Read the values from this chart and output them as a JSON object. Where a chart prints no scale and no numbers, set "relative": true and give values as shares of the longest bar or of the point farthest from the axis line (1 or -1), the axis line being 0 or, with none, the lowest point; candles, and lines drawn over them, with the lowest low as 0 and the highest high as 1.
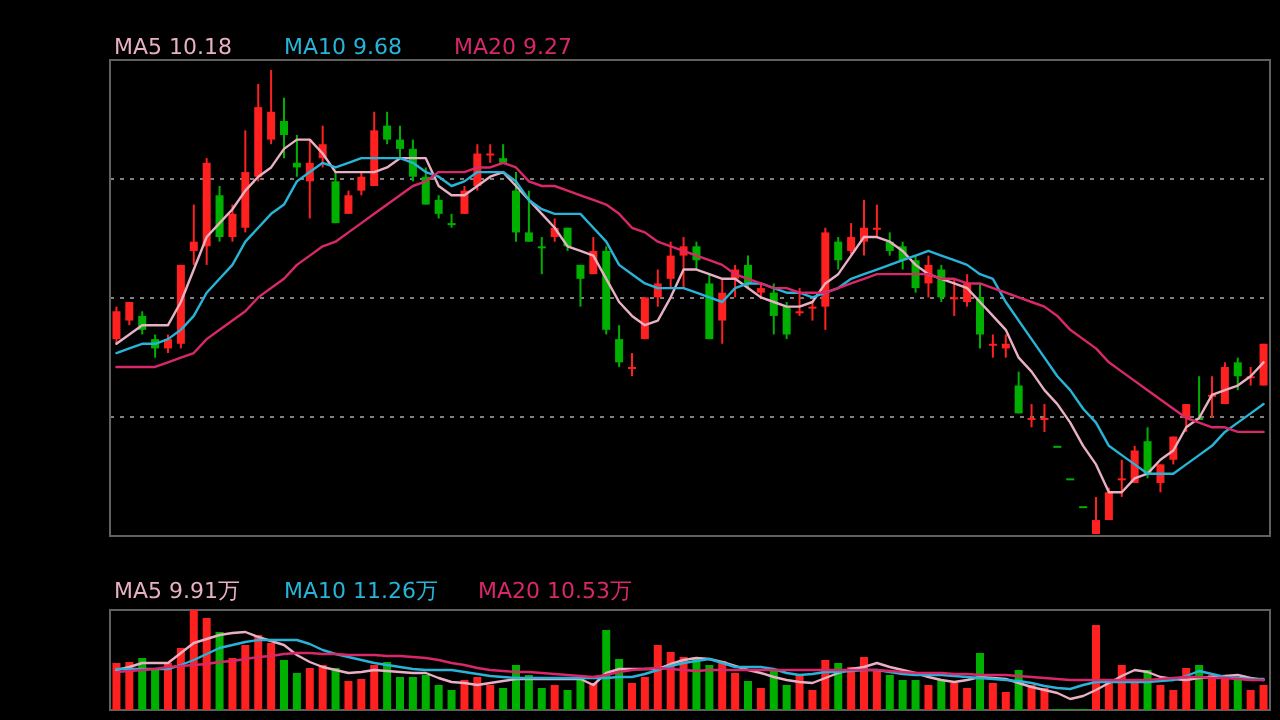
{
  "chart_data": [
    {
      "type": "candlestick",
      "relative": true,
      "grid": "y",
      "legend": "top left",
      "categories": [
        null,
        null,
        null,
        null,
        null,
        null,
        null,
        null,
        null,
        null,
        null,
        null,
        null,
        null,
        null,
        null,
        null,
        null,
        null,
        null,
        null,
        null,
        null,
        null,
        null,
        null,
        null,
        null,
        null,
        null,
        null,
        null,
        null,
        null,
        null,
        null,
        null,
        null,
        null,
        null,
        null,
        null,
        null,
        null,
        null,
        null,
        null,
        null,
        null,
        null,
        null,
        null,
        null,
        null,
        null,
        null,
        null,
        null,
        null,
        null,
        null,
        null,
        null,
        null,
        null,
        null,
        null,
        null,
        null,
        null,
        null,
        null,
        null,
        null,
        null,
        null,
        null,
        null,
        null,
        null,
        null,
        null,
        null,
        null,
        null,
        null,
        null,
        null,
        null,
        null
      ],
      "ohlc": [
        [
          0.42,
          0.49,
          0.41,
          0.48
        ],
        [
          0.46,
          0.5,
          0.45,
          0.5
        ],
        [
          0.47,
          0.48,
          0.43,
          0.44
        ],
        [
          0.42,
          0.43,
          0.38,
          0.4
        ],
        [
          0.4,
          0.43,
          0.39,
          0.42
        ],
        [
          0.41,
          0.58,
          0.4,
          0.58
        ],
        [
          0.61,
          0.71,
          0.58,
          0.63
        ],
        [
          0.62,
          0.81,
          0.58,
          0.8
        ],
        [
          0.73,
          0.75,
          0.63,
          0.64
        ],
        [
          0.64,
          0.71,
          0.63,
          0.69
        ],
        [
          0.66,
          0.87,
          0.65,
          0.78
        ],
        [
          0.77,
          0.97,
          0.76,
          0.92
        ],
        [
          0.85,
          1.0,
          0.84,
          0.91
        ],
        [
          0.89,
          0.94,
          0.81,
          0.86
        ],
        [
          0.8,
          0.86,
          0.77,
          0.79
        ],
        [
          0.76,
          0.85,
          0.68,
          0.8
        ],
        [
          0.81,
          0.88,
          0.79,
          0.84
        ],
        [
          0.76,
          0.78,
          0.67,
          0.67
        ],
        [
          0.69,
          0.74,
          0.69,
          0.73
        ],
        [
          0.74,
          0.78,
          0.73,
          0.77
        ],
        [
          0.75,
          0.91,
          0.75,
          0.87
        ],
        [
          0.88,
          0.91,
          0.84,
          0.85
        ],
        [
          0.85,
          0.88,
          0.81,
          0.83
        ],
        [
          0.83,
          0.85,
          0.76,
          0.77
        ],
        [
          0.77,
          0.79,
          0.71,
          0.71
        ],
        [
          0.72,
          0.73,
          0.68,
          0.69
        ],
        [
          0.67,
          0.69,
          0.66,
          0.67
        ],
        [
          0.69,
          0.75,
          0.69,
          0.74
        ],
        [
          0.75,
          0.84,
          0.74,
          0.82
        ],
        [
          0.82,
          0.84,
          0.8,
          0.82
        ],
        [
          0.81,
          0.84,
          0.8,
          0.8
        ],
        [
          0.74,
          0.78,
          0.63,
          0.65
        ],
        [
          0.65,
          0.74,
          0.63,
          0.63
        ],
        [
          0.62,
          0.64,
          0.56,
          0.62
        ],
        [
          0.64,
          0.68,
          0.63,
          0.66
        ],
        [
          0.66,
          0.66,
          0.61,
          0.62
        ],
        [
          0.58,
          0.58,
          0.49,
          0.55
        ],
        [
          0.56,
          0.64,
          0.56,
          0.61
        ],
        [
          0.61,
          0.62,
          0.43,
          0.44
        ],
        [
          0.42,
          0.45,
          0.36,
          0.37
        ],
        [
          0.36,
          0.39,
          0.34,
          0.36
        ],
        [
          0.42,
          0.51,
          0.42,
          0.51
        ],
        [
          0.51,
          0.57,
          0.49,
          0.54
        ],
        [
          0.55,
          0.63,
          0.53,
          0.6
        ],
        [
          0.6,
          0.64,
          0.53,
          0.62
        ],
        [
          0.62,
          0.63,
          0.57,
          0.59
        ],
        [
          0.54,
          0.56,
          0.42,
          0.42
        ],
        [
          0.46,
          0.55,
          0.41,
          0.52
        ],
        [
          0.55,
          0.58,
          0.51,
          0.57
        ],
        [
          0.58,
          0.6,
          0.53,
          0.54
        ],
        [
          0.52,
          0.54,
          0.51,
          0.53
        ],
        [
          0.52,
          0.54,
          0.43,
          0.47
        ],
        [
          0.49,
          0.5,
          0.42,
          0.43
        ],
        [
          0.48,
          0.53,
          0.47,
          0.48
        ],
        [
          0.49,
          0.5,
          0.46,
          0.49
        ],
        [
          0.49,
          0.66,
          0.44,
          0.65
        ],
        [
          0.63,
          0.64,
          0.57,
          0.59
        ],
        [
          0.61,
          0.67,
          0.6,
          0.64
        ],
        [
          0.63,
          0.72,
          0.6,
          0.66
        ],
        [
          0.66,
          0.71,
          0.64,
          0.66
        ],
        [
          0.63,
          0.65,
          0.6,
          0.61
        ],
        [
          0.62,
          0.63,
          0.57,
          0.59
        ],
        [
          0.59,
          0.6,
          0.52,
          0.53
        ],
        [
          0.54,
          0.6,
          0.51,
          0.58
        ],
        [
          0.57,
          0.58,
          0.5,
          0.51
        ],
        [
          0.51,
          0.55,
          0.47,
          0.51
        ],
        [
          0.5,
          0.56,
          0.49,
          0.54
        ],
        [
          0.51,
          0.54,
          0.4,
          0.43
        ],
        [
          0.41,
          0.43,
          0.38,
          0.41
        ],
        [
          0.4,
          0.43,
          0.38,
          0.41
        ],
        [
          0.32,
          0.35,
          0.26,
          0.26
        ],
        [
          0.25,
          0.28,
          0.23,
          0.25
        ],
        [
          0.25,
          0.28,
          0.22,
          0.25
        ],
        [
          0.19,
          0.19,
          0.19,
          0.19
        ],
        [
          0.12,
          0.12,
          0.12,
          0.12
        ],
        [
          0.06,
          0.06,
          0.06,
          0.06
        ],
        [
          0.0,
          0.08,
          0.0,
          0.03
        ],
        [
          0.03,
          0.1,
          0.03,
          0.09
        ],
        [
          0.12,
          0.16,
          0.08,
          0.12
        ],
        [
          0.11,
          0.19,
          0.11,
          0.18
        ],
        [
          0.2,
          0.23,
          0.12,
          0.13
        ],
        [
          0.11,
          0.15,
          0.09,
          0.15
        ],
        [
          0.16,
          0.21,
          0.15,
          0.21
        ],
        [
          0.25,
          0.28,
          0.22,
          0.28
        ],
        [
          0.25,
          0.34,
          0.25,
          0.25
        ],
        [
          0.3,
          0.34,
          0.25,
          0.3
        ],
        [
          0.28,
          0.37,
          0.28,
          0.36
        ],
        [
          0.37,
          0.38,
          0.31,
          0.34
        ],
        [
          0.34,
          0.36,
          0.32,
          0.34
        ],
        [
          0.32,
          0.41,
          0.32,
          0.41
        ]
      ],
      "colors": [
        "#ff2020",
        "#ff2020",
        "#00b000",
        "#00b000",
        "#ff2020",
        "#ff2020",
        "#ff2020",
        "#ff2020",
        "#00b000",
        "#ff2020",
        "#ff2020",
        "#ff2020",
        "#ff2020",
        "#00b000",
        "#00b000",
        "#ff2020",
        "#ff2020",
        "#00b000",
        "#ff2020",
        "#ff2020",
        "#ff2020",
        "#00b000",
        "#00b000",
        "#00b000",
        "#00b000",
        "#00b000",
        "#00b000",
        "#ff2020",
        "#ff2020",
        "#ff2020",
        "#00b000",
        "#00b000",
        "#00b000",
        "#00b000",
        "#ff2020",
        "#00b000",
        "#00b000",
        "#ff2020",
        "#00b000",
        "#00b000",
        "#ff2020",
        "#ff2020",
        "#ff2020",
        "#ff2020",
        "#ff2020",
        "#00b000",
        "#00b000",
        "#ff2020",
        "#ff2020",
        "#00b000",
        "#ff2020",
        "#00b000",
        "#00b000",
        "#ff2020",
        "#ff2020",
        "#ff2020",
        "#00b000",
        "#ff2020",
        "#ff2020",
        "#ff2020",
        "#00b000",
        "#00b000",
        "#00b000",
        "#ff2020",
        "#00b000",
        "#ff2020",
        "#ff2020",
        "#00b000",
        "#ff2020",
        "#ff2020",
        "#00b000",
        "#ff2020",
        "#ff2020",
        "#00b000",
        "#00b000",
        "#00b000",
        "#ff2020",
        "#ff2020",
        "#ff2020",
        "#ff2020",
        "#00b000",
        "#ff2020",
        "#ff2020",
        "#ff2020",
        "#00b000",
        "#ff2020",
        "#ff2020",
        "#00b000",
        "#ff2020",
        "#ff2020"
      ],
      "series": [
        {
          "name": "MA5 10.18",
          "type": "line",
          "color": "#e8b0c4",
          "values": [
            0.41,
            0.43,
            0.45,
            0.45,
            0.45,
            0.5,
            0.57,
            0.64,
            0.67,
            0.7,
            0.74,
            0.77,
            0.79,
            0.83,
            0.85,
            0.85,
            0.82,
            0.78,
            0.78,
            0.78,
            0.78,
            0.79,
            0.81,
            0.81,
            0.81,
            0.75,
            0.73,
            0.73,
            0.75,
            0.77,
            0.78,
            0.75,
            0.72,
            0.69,
            0.66,
            0.62,
            0.61,
            0.6,
            0.55,
            0.5,
            0.47,
            0.45,
            0.46,
            0.51,
            0.57,
            0.57,
            0.56,
            0.55,
            0.55,
            0.53,
            0.51,
            0.5,
            0.49,
            0.49,
            0.5,
            0.54,
            0.56,
            0.6,
            0.64,
            0.64,
            0.63,
            0.61,
            0.58,
            0.56,
            0.55,
            0.54,
            0.53,
            0.5,
            0.47,
            0.44,
            0.38,
            0.35,
            0.31,
            0.28,
            0.24,
            0.19,
            0.15,
            0.09,
            0.09,
            0.12,
            0.13,
            0.16,
            0.18,
            0.23,
            0.25,
            0.3,
            0.31,
            0.32,
            0.34,
            0.37
          ]
        },
        {
          "name": "MA10 9.68",
          "type": "line",
          "color": "#28b4d8",
          "values": [
            0.39,
            0.4,
            0.41,
            0.41,
            0.42,
            0.44,
            0.47,
            0.52,
            0.55,
            0.58,
            0.63,
            0.66,
            0.69,
            0.71,
            0.76,
            0.78,
            0.8,
            0.79,
            0.8,
            0.81,
            0.81,
            0.81,
            0.81,
            0.8,
            0.78,
            0.77,
            0.75,
            0.76,
            0.78,
            0.78,
            0.78,
            0.76,
            0.72,
            0.7,
            0.69,
            0.69,
            0.69,
            0.66,
            0.63,
            0.58,
            0.56,
            0.54,
            0.53,
            0.53,
            0.53,
            0.52,
            0.51,
            0.5,
            0.53,
            0.54,
            0.54,
            0.53,
            0.52,
            0.52,
            0.51,
            0.52,
            0.53,
            0.55,
            0.56,
            0.57,
            0.58,
            0.59,
            0.6,
            0.61,
            0.6,
            0.59,
            0.58,
            0.56,
            0.55,
            0.5,
            0.46,
            0.42,
            0.38,
            0.34,
            0.31,
            0.27,
            0.24,
            0.19,
            0.17,
            0.15,
            0.13,
            0.13,
            0.13,
            0.15,
            0.17,
            0.19,
            0.22,
            0.24,
            0.26,
            0.28
          ]
        },
        {
          "name": "MA20 9.27",
          "type": "line",
          "color": "#d8286a",
          "values": [
            0.36,
            0.36,
            0.36,
            0.36,
            0.37,
            0.38,
            0.39,
            0.42,
            0.44,
            0.46,
            0.48,
            0.51,
            0.53,
            0.55,
            0.58,
            0.6,
            0.62,
            0.63,
            0.65,
            0.67,
            0.69,
            0.71,
            0.73,
            0.75,
            0.76,
            0.78,
            0.78,
            0.78,
            0.79,
            0.79,
            0.8,
            0.79,
            0.76,
            0.75,
            0.75,
            0.74,
            0.73,
            0.72,
            0.71,
            0.69,
            0.66,
            0.65,
            0.63,
            0.62,
            0.61,
            0.6,
            0.59,
            0.58,
            0.56,
            0.55,
            0.54,
            0.53,
            0.53,
            0.52,
            0.52,
            0.52,
            0.53,
            0.54,
            0.55,
            0.56,
            0.56,
            0.56,
            0.56,
            0.56,
            0.55,
            0.55,
            0.54,
            0.54,
            0.53,
            0.52,
            0.51,
            0.5,
            0.49,
            0.47,
            0.44,
            0.42,
            0.4,
            0.37,
            0.35,
            0.33,
            0.31,
            0.29,
            0.27,
            0.25,
            0.24,
            0.23,
            0.23,
            0.22,
            0.22,
            0.22
          ]
        }
      ]
    },
    {
      "type": "bar",
      "relative": true,
      "legend": "top left",
      "categories": [
        null,
        null,
        null,
        null,
        null,
        null,
        null,
        null,
        null,
        null,
        null,
        null,
        null,
        null,
        null,
        null,
        null,
        null,
        null,
        null,
        null,
        null,
        null,
        null,
        null,
        null,
        null,
        null,
        null,
        null,
        null,
        null,
        null,
        null,
        null,
        null,
        null,
        null,
        null,
        null,
        null,
        null,
        null,
        null,
        null,
        null,
        null,
        null,
        null,
        null,
        null,
        null,
        null,
        null,
        null,
        null,
        null,
        null,
        null,
        null,
        null,
        null,
        null,
        null,
        null,
        null,
        null,
        null,
        null,
        null,
        null,
        null,
        null,
        null,
        null,
        null,
        null,
        null,
        null,
        null,
        null,
        null,
        null,
        null,
        null,
        null,
        null,
        null,
        null,
        null
      ],
      "series": [
        {
          "type": "bar",
          "colors": [
            "#ff2020",
            "#ff2020",
            "#00b000",
            "#00b000",
            "#ff2020",
            "#ff2020",
            "#ff2020",
            "#ff2020",
            "#00b000",
            "#ff2020",
            "#ff2020",
            "#ff2020",
            "#ff2020",
            "#00b000",
            "#00b000",
            "#ff2020",
            "#ff2020",
            "#00b000",
            "#ff2020",
            "#ff2020",
            "#ff2020",
            "#00b000",
            "#00b000",
            "#00b000",
            "#00b000",
            "#00b000",
            "#00b000",
            "#ff2020",
            "#ff2020",
            "#ff2020",
            "#00b000",
            "#00b000",
            "#00b000",
            "#00b000",
            "#ff2020",
            "#00b000",
            "#00b000",
            "#ff2020",
            "#00b000",
            "#00b000",
            "#ff2020",
            "#ff2020",
            "#ff2020",
            "#ff2020",
            "#ff2020",
            "#00b000",
            "#00b000",
            "#ff2020",
            "#ff2020",
            "#00b000",
            "#ff2020",
            "#00b000",
            "#00b000",
            "#ff2020",
            "#ff2020",
            "#ff2020",
            "#00b000",
            "#ff2020",
            "#ff2020",
            "#ff2020",
            "#00b000",
            "#00b000",
            "#00b000",
            "#ff2020",
            "#00b000",
            "#ff2020",
            "#ff2020",
            "#00b000",
            "#ff2020",
            "#ff2020",
            "#00b000",
            "#ff2020",
            "#ff2020",
            "#00b000",
            "#00b000",
            "#00b000",
            "#ff2020",
            "#ff2020",
            "#ff2020",
            "#ff2020",
            "#00b000",
            "#ff2020",
            "#ff2020",
            "#ff2020",
            "#00b000",
            "#ff2020",
            "#ff2020",
            "#00b000",
            "#ff2020",
            "#ff2020"
          ],
          "values": [
            0.47,
            0.48,
            0.52,
            0.4,
            0.47,
            0.62,
            1.0,
            0.92,
            0.78,
            0.52,
            0.65,
            0.75,
            0.67,
            0.5,
            0.37,
            0.42,
            0.45,
            0.42,
            0.29,
            0.31,
            0.45,
            0.48,
            0.33,
            0.33,
            0.35,
            0.25,
            0.2,
            0.3,
            0.33,
            0.25,
            0.22,
            0.45,
            0.35,
            0.22,
            0.25,
            0.2,
            0.33,
            0.27,
            0.8,
            0.51,
            0.27,
            0.33,
            0.65,
            0.58,
            0.53,
            0.53,
            0.45,
            0.49,
            0.37,
            0.29,
            0.22,
            0.4,
            0.25,
            0.35,
            0.2,
            0.5,
            0.47,
            0.43,
            0.53,
            0.4,
            0.35,
            0.3,
            0.3,
            0.25,
            0.3,
            0.27,
            0.22,
            0.57,
            0.27,
            0.18,
            0.4,
            0.25,
            0.22,
            0.01,
            0.01,
            0.01,
            0.85,
            0.28,
            0.45,
            0.29,
            0.4,
            0.25,
            0.2,
            0.42,
            0.45,
            0.35,
            0.35,
            0.3,
            0.2,
            0.25
          ]
        },
        {
          "name": "MA5 9.91万",
          "type": "line",
          "color": "#e8b0c4",
          "values": [
            0.4,
            0.43,
            0.47,
            0.47,
            0.47,
            0.57,
            0.67,
            0.71,
            0.75,
            0.77,
            0.78,
            0.73,
            0.69,
            0.65,
            0.55,
            0.48,
            0.43,
            0.4,
            0.37,
            0.38,
            0.4,
            0.39,
            0.38,
            0.37,
            0.37,
            0.32,
            0.28,
            0.27,
            0.25,
            0.27,
            0.29,
            0.31,
            0.31,
            0.31,
            0.31,
            0.31,
            0.31,
            0.25,
            0.37,
            0.41,
            0.41,
            0.41,
            0.41,
            0.46,
            0.5,
            0.52,
            0.51,
            0.48,
            0.44,
            0.4,
            0.37,
            0.33,
            0.3,
            0.28,
            0.27,
            0.32,
            0.37,
            0.41,
            0.43,
            0.47,
            0.43,
            0.4,
            0.37,
            0.33,
            0.3,
            0.28,
            0.3,
            0.33,
            0.32,
            0.31,
            0.27,
            0.23,
            0.2,
            0.17,
            0.11,
            0.14,
            0.2,
            0.27,
            0.34,
            0.4,
            0.38,
            0.33,
            0.31,
            0.3,
            0.32,
            0.33,
            0.34,
            0.35,
            0.32,
            0.3
          ]
        },
        {
          "name": "MA10 11.26万",
          "type": "line",
          "color": "#28b4d8",
          "values": [
            0.41,
            0.41,
            0.41,
            0.41,
            0.41,
            0.45,
            0.5,
            0.56,
            0.62,
            0.65,
            0.68,
            0.7,
            0.7,
            0.7,
            0.7,
            0.66,
            0.6,
            0.56,
            0.53,
            0.5,
            0.47,
            0.45,
            0.43,
            0.41,
            0.4,
            0.4,
            0.4,
            0.38,
            0.36,
            0.34,
            0.33,
            0.32,
            0.32,
            0.32,
            0.32,
            0.32,
            0.32,
            0.32,
            0.32,
            0.33,
            0.33,
            0.36,
            0.4,
            0.44,
            0.47,
            0.49,
            0.51,
            0.47,
            0.43,
            0.43,
            0.43,
            0.41,
            0.37,
            0.35,
            0.36,
            0.38,
            0.38,
            0.39,
            0.4,
            0.4,
            0.38,
            0.36,
            0.35,
            0.35,
            0.35,
            0.34,
            0.33,
            0.32,
            0.31,
            0.3,
            0.29,
            0.27,
            0.24,
            0.22,
            0.21,
            0.25,
            0.28,
            0.28,
            0.28,
            0.28,
            0.28,
            0.29,
            0.3,
            0.34,
            0.39,
            0.36,
            0.33,
            0.32,
            0.31,
            0.31
          ]
        },
        {
          "name": "MA20 10.53万",
          "type": "line",
          "color": "#d8286a",
          "values": [
            0.38,
            0.39,
            0.4,
            0.41,
            0.43,
            0.44,
            0.45,
            0.46,
            0.48,
            0.49,
            0.51,
            0.53,
            0.54,
            0.56,
            0.57,
            0.57,
            0.56,
            0.56,
            0.55,
            0.55,
            0.55,
            0.54,
            0.54,
            0.53,
            0.52,
            0.5,
            0.47,
            0.45,
            0.42,
            0.4,
            0.39,
            0.38,
            0.38,
            0.37,
            0.36,
            0.35,
            0.34,
            0.33,
            0.35,
            0.38,
            0.4,
            0.41,
            0.42,
            0.41,
            0.4,
            0.39,
            0.4,
            0.4,
            0.4,
            0.4,
            0.4,
            0.4,
            0.4,
            0.4,
            0.4,
            0.4,
            0.4,
            0.4,
            0.4,
            0.4,
            0.39,
            0.38,
            0.37,
            0.37,
            0.37,
            0.36,
            0.36,
            0.35,
            0.35,
            0.35,
            0.34,
            0.33,
            0.32,
            0.31,
            0.3,
            0.3,
            0.3,
            0.3,
            0.3,
            0.3,
            0.3,
            0.31,
            0.32,
            0.33,
            0.33,
            0.32,
            0.32,
            0.31,
            0.3,
            0.3
          ]
        }
      ]
    }
  ]
}
